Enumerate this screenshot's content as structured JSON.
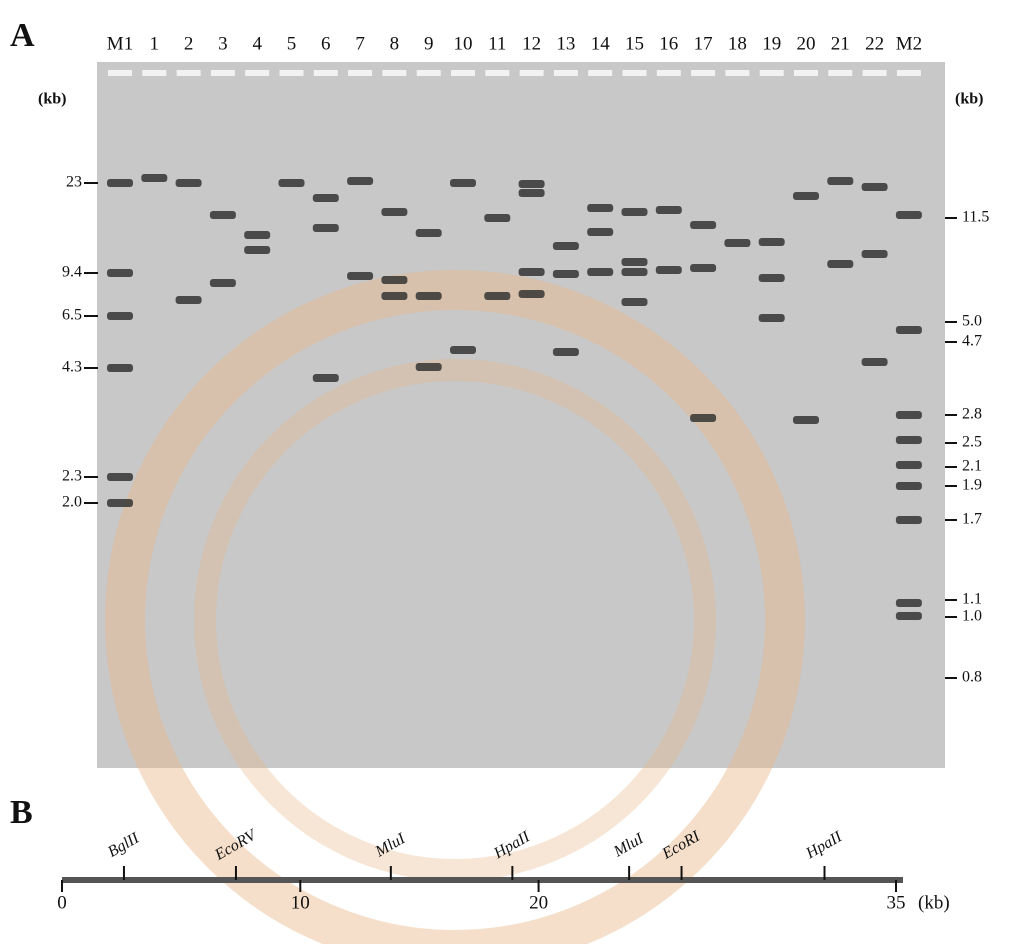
{
  "panel_a": {
    "label": "A",
    "lanes": [
      "M1",
      "1",
      "2",
      "3",
      "4",
      "5",
      "6",
      "7",
      "8",
      "9",
      "10",
      "11",
      "12",
      "13",
      "14",
      "15",
      "16",
      "17",
      "18",
      "19",
      "20",
      "21",
      "22",
      "M2"
    ],
    "left_unit": "(kb)",
    "right_unit": "(kb)",
    "left_markers": [
      "23",
      "9.4",
      "6.5",
      "4.3",
      "2.3",
      "2.0"
    ],
    "right_markers": [
      "11.5",
      "5.0",
      "4.7",
      "2.8",
      "2.5",
      "2.1",
      "1.9",
      "1.7",
      "1.1",
      "1.0",
      "0.8"
    ]
  },
  "panel_b": {
    "label": "B",
    "unit": "(kb)",
    "range": [
      0,
      35
    ],
    "ticks": [
      0,
      10,
      20,
      35
    ],
    "sites": [
      {
        "name": "BglII",
        "position": 2.6
      },
      {
        "name": "EcoRV",
        "position": 7.3
      },
      {
        "name": "MluI",
        "position": 13.8
      },
      {
        "name": "HpaII",
        "position": 18.9
      },
      {
        "name": "MluI",
        "position": 23.8
      },
      {
        "name": "EcoRI",
        "position": 26
      },
      {
        "name": "HpaII",
        "position": 32
      }
    ]
  }
}
